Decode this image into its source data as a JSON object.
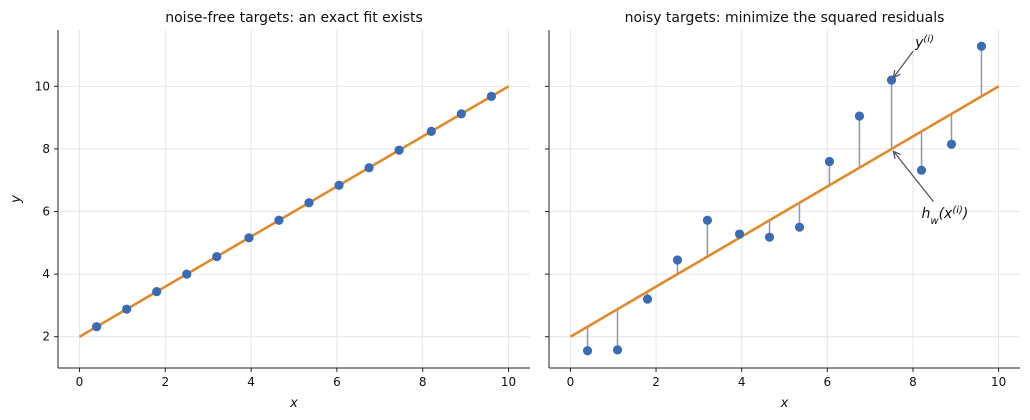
{
  "chart_data": [
    {
      "type": "scatter",
      "title": "noise-free targets: an exact fit exists",
      "xlabel": "x",
      "ylabel": "y",
      "xlim": [
        -0.5,
        10.5
      ],
      "ylim": [
        1,
        11.8
      ],
      "x_ticks": [
        "0",
        "2",
        "4",
        "6",
        "8",
        "10"
      ],
      "y_ticks": [
        "2",
        "4",
        "6",
        "8",
        "10"
      ],
      "grid": true,
      "series": [
        {
          "kind": "points",
          "x": [
            0.4,
            1.1,
            1.8,
            2.5,
            3.2,
            3.95,
            4.65,
            5.35,
            6.05,
            6.75,
            7.45,
            8.2,
            8.9,
            9.6
          ],
          "y": [
            2.32,
            2.88,
            3.44,
            4.0,
            4.56,
            5.16,
            5.72,
            6.28,
            6.84,
            7.4,
            7.96,
            8.56,
            9.12,
            9.68
          ],
          "color": "#3a6bb5"
        },
        {
          "kind": "line",
          "x": [
            0,
            10
          ],
          "y": [
            2.0,
            10.0
          ],
          "color": "#e08a2c"
        }
      ]
    },
    {
      "type": "scatter",
      "title": "noisy targets: minimize the squared residuals",
      "xlabel": "x",
      "ylabel": "",
      "xlim": [
        -0.5,
        10.5
      ],
      "ylim": [
        1,
        11.8
      ],
      "x_ticks": [
        "0",
        "2",
        "4",
        "6",
        "8",
        "10"
      ],
      "y_ticks": [
        "2",
        "4",
        "6",
        "8",
        "10"
      ],
      "grid": true,
      "series": [
        {
          "kind": "points",
          "x": [
            0.4,
            1.1,
            1.8,
            2.5,
            3.2,
            3.95,
            4.65,
            5.35,
            6.05,
            6.75,
            7.5,
            8.2,
            8.9,
            9.6
          ],
          "y": [
            1.55,
            1.58,
            3.2,
            4.45,
            5.72,
            5.28,
            5.18,
            5.5,
            7.6,
            9.05,
            10.2,
            7.32,
            8.15,
            11.28
          ],
          "color": "#3a6bb5"
        },
        {
          "kind": "line",
          "x": [
            0,
            10
          ],
          "y": [
            2.0,
            10.0
          ],
          "color": "#e08a2c"
        }
      ],
      "residuals_color": "#8a9bb0",
      "annotations": [
        {
          "label": "y",
          "sup": "(i)",
          "text_xy": [
            8.05,
            11.25
          ],
          "point_xy": [
            7.5,
            10.2
          ]
        },
        {
          "label": "h",
          "sub": "w",
          "arg": "(x",
          "sup": "(i)",
          "close": ")",
          "text_xy": [
            8.2,
            5.8
          ],
          "point_xy": [
            7.5,
            8.0
          ]
        }
      ],
      "annotation_color": "#505868"
    }
  ]
}
